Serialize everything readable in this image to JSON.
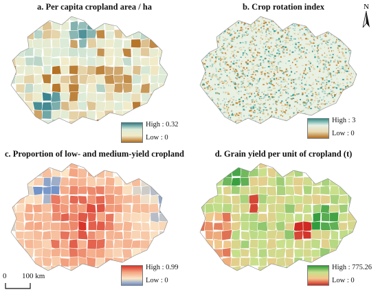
{
  "panels": [
    {
      "id": "a",
      "title": "a. Per capita cropland area / ha",
      "legend_high": "High : 0.32",
      "legend_low": "Low : 0",
      "ramp": [
        "#2e7d89",
        "#dcebd8",
        "#f2ebc8",
        "#b36f22"
      ]
    },
    {
      "id": "b",
      "title": "b. Crop rotation index",
      "legend_high": "High : 3",
      "legend_low": "Low : 0",
      "ramp": [
        "#2e8f8a",
        "#e6efe6",
        "#e8d9b0",
        "#b37020"
      ]
    },
    {
      "id": "c",
      "title": "c. Proportion of low- and medium-yield cropland",
      "legend_high": "High : 0.99",
      "legend_low": "Low : 0",
      "ramp": [
        "#d7342a",
        "#f4a582",
        "#fbe7c8",
        "#6a8fc9"
      ]
    },
    {
      "id": "d",
      "title": "d. Grain yield per unit of cropland (t)",
      "legend_high": "High : 775.26",
      "legend_low": "Low : 0",
      "ramp": [
        "#2e9a3a",
        "#c8e08c",
        "#f4c48c",
        "#cf2a22"
      ]
    }
  ],
  "north_label": "N",
  "scale": {
    "zero": "0",
    "dist": "100 km"
  }
}
